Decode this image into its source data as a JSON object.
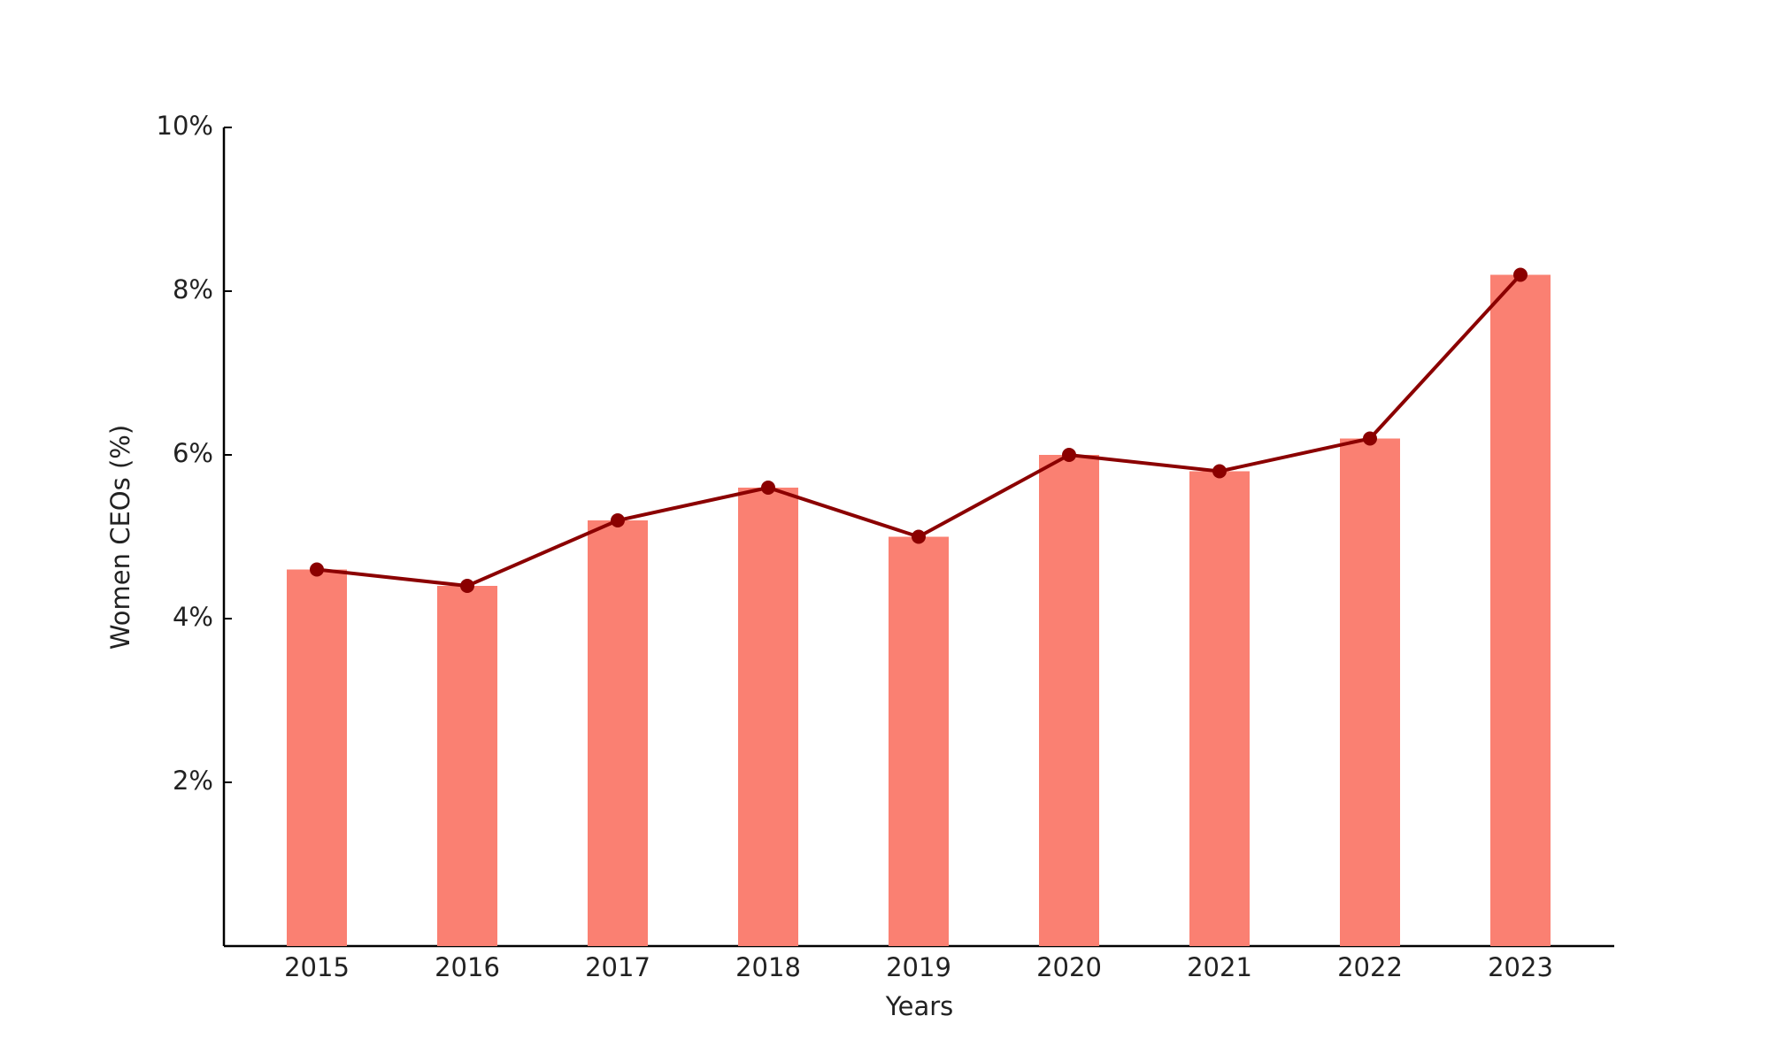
{
  "chart_data": {
    "type": "bar",
    "x_label": "Years",
    "y_label": "Women CEOs (%)",
    "categories": [
      "2015",
      "2016",
      "2017",
      "2018",
      "2019",
      "2020",
      "2021",
      "2022",
      "2023"
    ],
    "values": [
      4.6,
      4.4,
      5.2,
      5.6,
      5.0,
      6.0,
      5.8,
      6.2,
      8.2
    ],
    "color": "#fa8072",
    "line_overlay": true,
    "line_color": "#8b0000",
    "ylim": [
      0,
      10
    ],
    "yticks": [
      {
        "value": 2,
        "label": "2%"
      },
      {
        "value": 4,
        "label": "4%"
      },
      {
        "value": 6,
        "label": "6%"
      },
      {
        "value": 8,
        "label": "8%"
      },
      {
        "value": 10,
        "label": "10%"
      }
    ],
    "grid": false
  }
}
